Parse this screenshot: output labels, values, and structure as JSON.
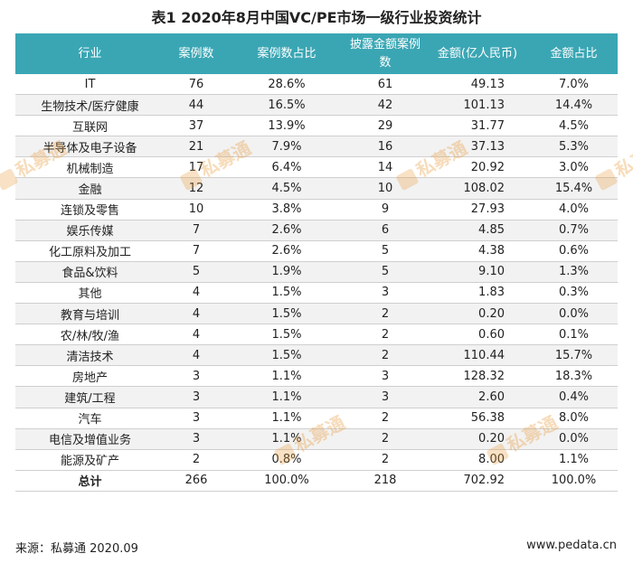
{
  "title": "表1  2020年8月中国VC/PE市场一级行业投资统计",
  "headers": [
    "行业",
    "案例数",
    "案例数占比",
    "披露金额案例数",
    "金额(亿人民币)",
    "金额占比"
  ],
  "rows": [
    [
      "IT",
      "76",
      "28.6%",
      "61",
      "49.13",
      "7.0%"
    ],
    [
      "生物技术/医疗健康",
      "44",
      "16.5%",
      "42",
      "101.13",
      "14.4%"
    ],
    [
      "互联网",
      "37",
      "13.9%",
      "29",
      "31.77",
      "4.5%"
    ],
    [
      "半导体及电子设备",
      "21",
      "7.9%",
      "16",
      "37.13",
      "5.3%"
    ],
    [
      "机械制造",
      "17",
      "6.4%",
      "14",
      "20.92",
      "3.0%"
    ],
    [
      "金融",
      "12",
      "4.5%",
      "10",
      "108.02",
      "15.4%"
    ],
    [
      "连锁及零售",
      "10",
      "3.8%",
      "9",
      "27.93",
      "4.0%"
    ],
    [
      "娱乐传媒",
      "7",
      "2.6%",
      "6",
      "4.85",
      "0.7%"
    ],
    [
      "化工原料及加工",
      "7",
      "2.6%",
      "5",
      "4.38",
      "0.6%"
    ],
    [
      "食品&饮料",
      "5",
      "1.9%",
      "5",
      "9.10",
      "1.3%"
    ],
    [
      "其他",
      "4",
      "1.5%",
      "3",
      "1.83",
      "0.3%"
    ],
    [
      "教育与培训",
      "4",
      "1.5%",
      "2",
      "0.20",
      "0.0%"
    ],
    [
      "农/林/牧/渔",
      "4",
      "1.5%",
      "2",
      "0.60",
      "0.1%"
    ],
    [
      "清洁技术",
      "4",
      "1.5%",
      "2",
      "110.44",
      "15.7%"
    ],
    [
      "房地产",
      "3",
      "1.1%",
      "3",
      "128.32",
      "18.3%"
    ],
    [
      "建筑/工程",
      "3",
      "1.1%",
      "3",
      "2.60",
      "0.4%"
    ],
    [
      "汽车",
      "3",
      "1.1%",
      "2",
      "56.38",
      "8.0%"
    ],
    [
      "电信及增值业务",
      "3",
      "1.1%",
      "2",
      "0.20",
      "0.0%"
    ],
    [
      "能源及矿产",
      "2",
      "0.8%",
      "2",
      "8.00",
      "1.1%"
    ]
  ],
  "total": [
    "总计",
    "266",
    "100.0%",
    "218",
    "702.92",
    "100.0%"
  ],
  "watermark": "私募通",
  "footer": {
    "source": "来源：私募通 2020.09",
    "site": "www.pedata.cn"
  },
  "colors": {
    "header_bg": "#3aa6b4",
    "alt_row_bg": "#f2f2f2",
    "watermark": "#e89b3c"
  }
}
